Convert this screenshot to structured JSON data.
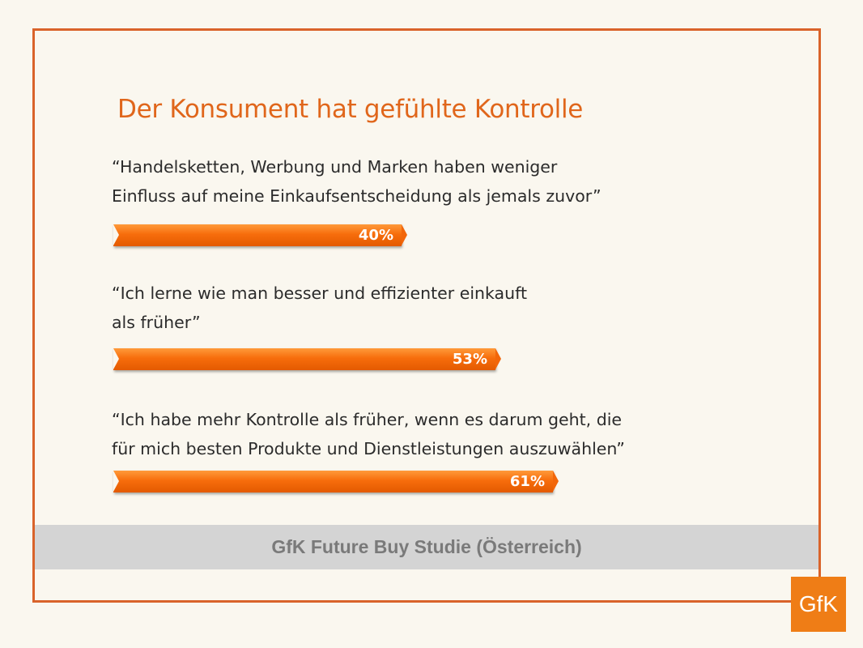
{
  "slide": {
    "title": "Der Konsument hat gefühlte Kontrolle",
    "footer": "GfK Future Buy Studie (Österreich)",
    "logo_text": "GfK"
  },
  "colors": {
    "accent": "#e0661b",
    "frame": "#d9632a",
    "bar": "#f76d0c",
    "footer_band": "#d4d4d4",
    "logo": "#ef7d16"
  },
  "chart_data": {
    "type": "bar",
    "orientation": "horizontal",
    "categories": [
      "“Handelsketten, Werbung und Marken haben weniger Einfluss auf meine Einkaufsentscheidung als jemals zuvor”",
      "“Ich lerne wie man besser und effizienter einkauft als früher”",
      "“Ich habe mehr Kontrolle als früher, wenn es darum geht, die für mich besten Produkte und Dienstleistungen auszuwählen”"
    ],
    "category_lines": [
      [
        "“Handelsketten, Werbung und Marken haben weniger",
        "Einfluss auf meine Einkaufsentscheidung als jemals zuvor”"
      ],
      [
        "“Ich lerne wie man besser und effizienter einkauft",
        "als früher”"
      ],
      [
        "“Ich habe mehr Kontrolle als früher, wenn es darum geht, die",
        "für mich besten Produkte und Dienstleistungen auszuwählen”"
      ]
    ],
    "values": [
      40,
      53,
      61
    ],
    "value_labels": [
      "40%",
      "53%",
      "61%"
    ],
    "unit": "%",
    "xlim": [
      0,
      100
    ],
    "grid": false,
    "legend": "none"
  }
}
